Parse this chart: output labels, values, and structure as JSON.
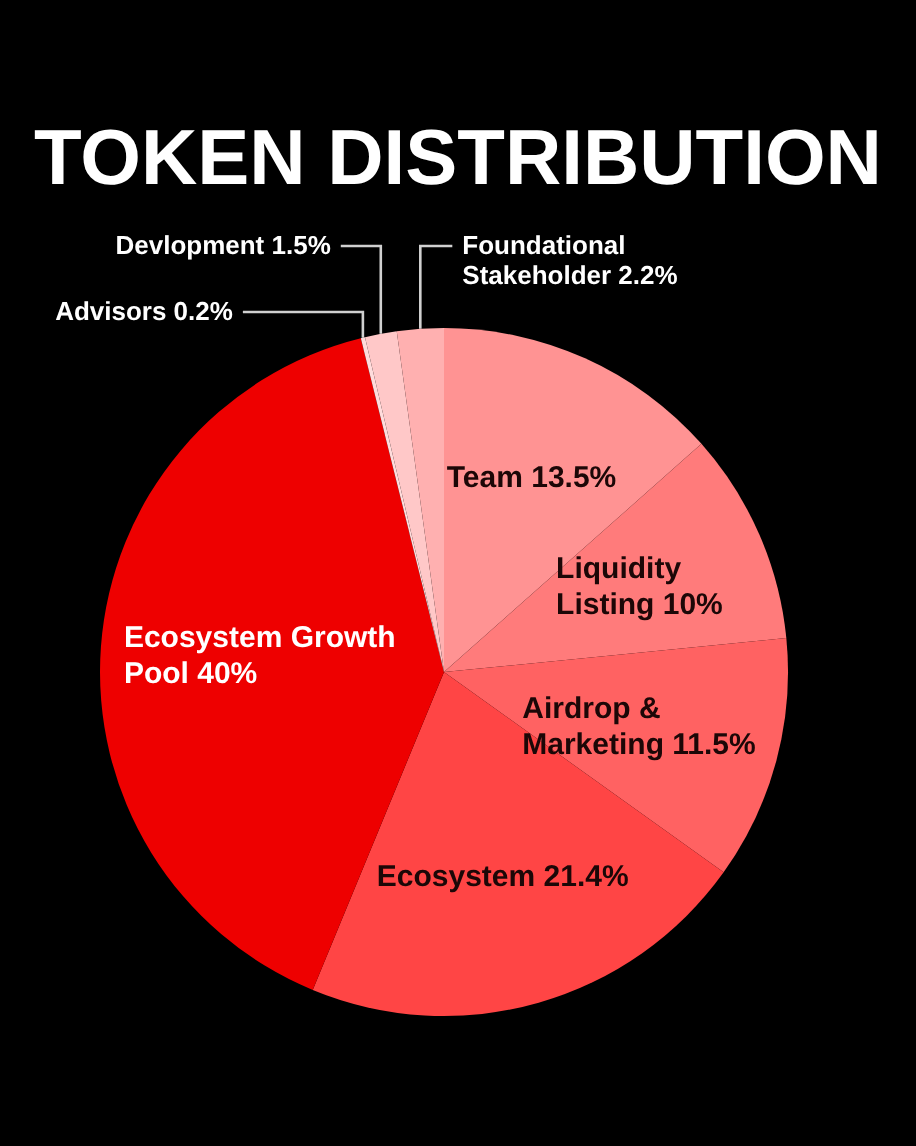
{
  "chart_data": {
    "type": "pie",
    "title": "TOKEN DISTRIBUTION",
    "categories": [
      "Team",
      "Liquidity Listing",
      "Airdrop & Marketing",
      "Ecosystem",
      "Ecosystem Growth Pool",
      "Advisors",
      "Devlopment",
      "Foundational Stakeholder"
    ],
    "values": [
      13.5,
      10,
      11.5,
      21.4,
      40,
      0.2,
      1.5,
      2.2
    ],
    "value_labels": [
      "13.5%",
      "10%",
      "11.5%",
      "21.4%",
      "40%",
      "0.2%",
      "1.5%",
      "2.2%"
    ],
    "colors": [
      "#ff9393",
      "#ff7b7b",
      "#ff6262",
      "#ff4545",
      "#ee0000",
      "#ffdcdc",
      "#ffc8c8",
      "#ffb0b0"
    ]
  }
}
